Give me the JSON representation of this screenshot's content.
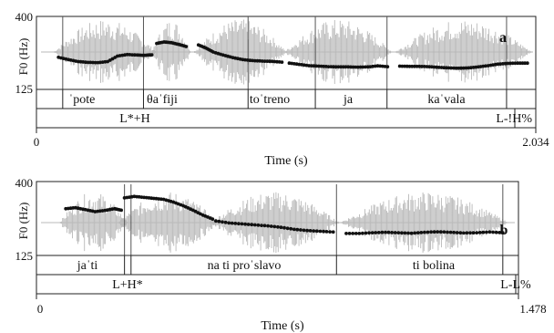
{
  "chart_data": [
    {
      "type": "scatter",
      "panel_label": "a",
      "ylabel": "F0 (Hz)",
      "xlabel": "Time (s)",
      "y_ticks": [
        "400",
        "125"
      ],
      "ylim": [
        125,
        400
      ],
      "x_ticks": [
        "0",
        "2.034"
      ],
      "xlim": [
        0,
        2.034
      ],
      "syllables": [
        "ˈpote",
        "θaˈfiji",
        "toˈtreno",
        "ja",
        "kaˈvala"
      ],
      "tones": {
        "left": "L*+H",
        "right": "L-!H%"
      },
      "word_boundaries": [
        0.107,
        0.436,
        0.862,
        1.136,
        1.428,
        1.915
      ],
      "segments": [
        {
          "f0": [
            [
              0.09,
              245
            ],
            [
              0.13,
              236
            ],
            [
              0.17,
              228
            ],
            [
              0.21,
              225
            ],
            [
              0.25,
              224
            ],
            [
              0.29,
              228
            ],
            [
              0.33,
              250
            ],
            [
              0.37,
              256
            ],
            [
              0.41,
              254
            ],
            [
              0.44,
              253
            ],
            [
              0.47,
              255
            ]
          ]
        },
        {
          "f0": [
            [
              0.49,
              300
            ],
            [
              0.52,
              306
            ],
            [
              0.55,
              303
            ],
            [
              0.58,
              296
            ],
            [
              0.61,
              288
            ]
          ]
        },
        {
          "f0": [
            [
              0.66,
              294
            ],
            [
              0.69,
              282
            ],
            [
              0.72,
              266
            ],
            [
              0.76,
              254
            ],
            [
              0.8,
              244
            ],
            [
              0.84,
              236
            ],
            [
              0.88,
              232
            ],
            [
              0.92,
              230
            ],
            [
              0.96,
              229
            ],
            [
              1.0,
              226
            ]
          ]
        },
        {
          "f0": [
            [
              1.03,
              222
            ],
            [
              1.07,
              217
            ],
            [
              1.11,
              212
            ],
            [
              1.15,
              210
            ],
            [
              1.19,
              208
            ],
            [
              1.23,
              207
            ],
            [
              1.27,
              207
            ],
            [
              1.31,
              206
            ],
            [
              1.35,
              207
            ],
            [
              1.39,
              211
            ],
            [
              1.43,
              208
            ]
          ]
        },
        {
          "f0": [
            [
              1.48,
              210
            ],
            [
              1.52,
              209
            ],
            [
              1.56,
              209
            ],
            [
              1.6,
              208
            ],
            [
              1.64,
              205
            ],
            [
              1.68,
              203
            ],
            [
              1.72,
              202
            ],
            [
              1.76,
              203
            ],
            [
              1.8,
              207
            ],
            [
              1.84,
              212
            ],
            [
              1.88,
              218
            ],
            [
              1.92,
              221
            ],
            [
              1.96,
              222
            ],
            [
              2.0,
              222
            ]
          ]
        }
      ]
    },
    {
      "type": "scatter",
      "panel_label": "b",
      "ylabel": "F0 (Hz)",
      "xlabel": "Time (s)",
      "y_ticks": [
        "400",
        "125"
      ],
      "ylim": [
        125,
        400
      ],
      "x_ticks": [
        "0",
        "1.478"
      ],
      "xlim": [
        0,
        1.478
      ],
      "syllables": [
        "jaˈti",
        "na ti proˈslavo",
        "ti bolina"
      ],
      "tones": {
        "left": "L+H*",
        "right": "L-L%"
      },
      "word_boundaries": [
        0.27,
        0.29,
        0.92,
        1.43
      ],
      "segments": [
        {
          "f0": [
            [
              0.09,
              308
            ],
            [
              0.12,
              312
            ],
            [
              0.15,
              304
            ],
            [
              0.18,
              296
            ],
            [
              0.21,
              301
            ],
            [
              0.24,
              308
            ],
            [
              0.26,
              302
            ]
          ]
        },
        {
          "f0": [
            [
              0.27,
              352
            ],
            [
              0.3,
              358
            ],
            [
              0.33,
              354
            ],
            [
              0.36,
              350
            ],
            [
              0.39,
              346
            ],
            [
              0.42,
              335
            ],
            [
              0.45,
              320
            ],
            [
              0.48,
              302
            ],
            [
              0.51,
              282
            ],
            [
              0.54,
              266
            ]
          ]
        },
        {
          "f0": [
            [
              0.55,
              258
            ],
            [
              0.59,
              250
            ],
            [
              0.63,
              246
            ],
            [
              0.67,
              242
            ],
            [
              0.71,
              238
            ],
            [
              0.75,
              232
            ],
            [
              0.79,
              224
            ],
            [
              0.83,
              219
            ],
            [
              0.87,
              216
            ],
            [
              0.91,
              213
            ]
          ]
        },
        {
          "f0": [
            [
              0.95,
              207
            ],
            [
              0.99,
              207
            ],
            [
              1.03,
              210
            ],
            [
              1.07,
              212
            ],
            [
              1.11,
              210
            ],
            [
              1.15,
              208
            ],
            [
              1.19,
              212
            ],
            [
              1.23,
              214
            ],
            [
              1.27,
              212
            ],
            [
              1.31,
              209
            ],
            [
              1.35,
              210
            ],
            [
              1.39,
              213
            ],
            [
              1.43,
              210
            ]
          ]
        }
      ]
    }
  ]
}
